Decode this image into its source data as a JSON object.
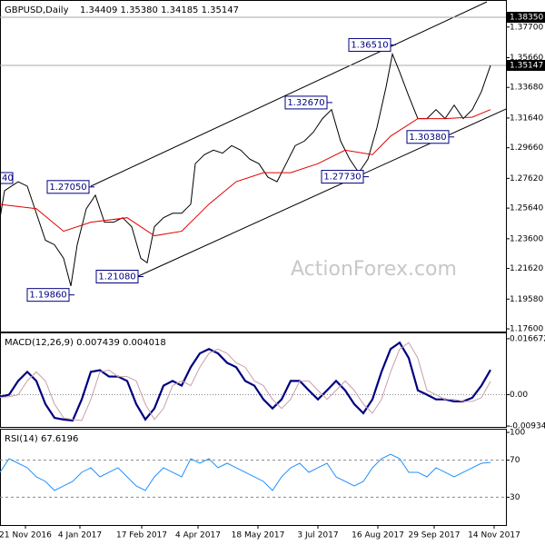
{
  "chart_data": [
    {
      "type": "line",
      "title": "GBPUSD,Daily",
      "subtitle": "1.34409 1.35380 1.34185 1.35147",
      "watermark": "ActionForex.com",
      "cut_label": "40",
      "xlim": [
        0,
        278.5
      ],
      "ylim": [
        1.1742,
        1.3938
      ],
      "yticks": [
        {
          "value": 1.176,
          "label": "1.17600"
        },
        {
          "value": 1.1958,
          "label": "1.19580"
        },
        {
          "value": 1.2162,
          "label": "1.21620"
        },
        {
          "value": 1.236,
          "label": "1.23600"
        },
        {
          "value": 1.2564,
          "label": "1.25640"
        },
        {
          "value": 1.2762,
          "label": "1.27620"
        },
        {
          "value": 1.2966,
          "label": "1.29660"
        },
        {
          "value": 1.3164,
          "label": "1.31640"
        },
        {
          "value": 1.3368,
          "label": "1.33680"
        },
        {
          "value": 1.3566,
          "label": "1.35660"
        },
        {
          "value": 1.377,
          "label": "1.37700"
        }
      ],
      "levels": [
        {
          "value": 1.3835,
          "label": "1.38350"
        },
        {
          "value": 1.35147,
          "label": "1.35147"
        }
      ],
      "series": [
        {
          "color": "#000000",
          "x": [
            0,
            2.5,
            10,
            15,
            20,
            25,
            30,
            35,
            39,
            42.5,
            47.5,
            52.5,
            57.5,
            62.5,
            67.5,
            72.5,
            77.5,
            81,
            85,
            90,
            95,
            100,
            105,
            107.5,
            112.5,
            117.5,
            122.5,
            127.5,
            132.5,
            137.5,
            142.5,
            147.5,
            152.5,
            157.5,
            162.5,
            167.5,
            172.5,
            177.5,
            182.5,
            187.5,
            192.5,
            197.5,
            202.5,
            207.5,
            212.5,
            216,
            220,
            225,
            230,
            235,
            240,
            245,
            250,
            255,
            260,
            265,
            270
          ],
          "values": [
            1.2498,
            1.268,
            1.274,
            1.271,
            1.253,
            1.235,
            1.232,
            1.223,
            1.2045,
            1.232,
            1.256,
            1.265,
            1.247,
            1.247,
            1.25,
            1.244,
            1.223,
            1.22,
            1.244,
            1.25,
            1.253,
            1.253,
            1.259,
            1.286,
            1.292,
            1.295,
            1.293,
            1.298,
            1.295,
            1.289,
            1.286,
            1.277,
            1.274,
            1.286,
            1.298,
            1.301,
            1.307,
            1.316,
            1.322,
            1.301,
            1.289,
            1.28,
            1.289,
            1.31,
            1.337,
            1.359,
            1.347,
            1.331,
            1.316,
            1.316,
            1.322,
            1.316,
            1.325,
            1.316,
            1.322,
            1.334,
            1.3514
          ]
        },
        {
          "color": "#e00000",
          "x": [
            0,
            20,
            35,
            50,
            70,
            85,
            100,
            115,
            130,
            145,
            160,
            175,
            190,
            205,
            215,
            230,
            245,
            260,
            270
          ],
          "values": [
            1.2589,
            1.256,
            1.241,
            1.247,
            1.25,
            1.238,
            1.241,
            1.259,
            1.274,
            1.28,
            1.28,
            1.286,
            1.295,
            1.292,
            1.3043,
            1.316,
            1.316,
            1.317,
            1.322
          ]
        }
      ],
      "channels": [
        {
          "x": [
            50,
            268
          ],
          "values": [
            1.271,
            1.3938
          ]
        },
        {
          "x": [
            75,
            278.5
          ],
          "values": [
            1.2105,
            1.3224
          ]
        }
      ],
      "annotations": [
        {
          "x": 218,
          "value": 1.3651,
          "label": "1.36510"
        },
        {
          "x": 183,
          "value": 1.3267,
          "label": "1.32670"
        },
        {
          "x": 52,
          "value": 1.2705,
          "label": "1.27050"
        },
        {
          "x": 203,
          "value": 1.2773,
          "label": "1.27730"
        },
        {
          "x": 250,
          "value": 1.3038,
          "label": "1.30380"
        },
        {
          "x": 79,
          "value": 1.2108,
          "label": "1.21080"
        },
        {
          "x": 41,
          "value": 1.1986,
          "label": "1.19860"
        }
      ]
    },
    {
      "type": "line",
      "title": "MACD(12,26,9) 0.007439 0.004018",
      "xlim": [
        0,
        278.5
      ],
      "ylim": [
        -0.0096,
        0.018
      ],
      "yticks": [
        0.016672,
        {
          "value": 0,
          "label": "0.00"
        },
        -0.009345
      ],
      "reflines": [
        0
      ],
      "refstyle": "1,2",
      "series": [
        {
          "color": "#000080",
          "width": 2.2,
          "x": [
            0,
            5,
            10,
            15,
            20,
            25,
            30,
            35,
            40,
            45,
            50,
            55,
            60,
            65,
            70,
            75,
            80,
            85,
            90,
            95,
            100,
            105,
            110,
            115,
            120,
            125,
            130,
            135,
            140,
            145,
            150,
            155,
            160,
            165,
            170,
            175,
            180,
            185,
            190,
            195,
            200,
            205,
            210,
            215,
            220,
            225,
            230,
            235,
            240,
            245,
            250,
            255,
            260,
            265,
            270
          ],
          "values": [
            -0.0006,
            0,
            0.0041,
            0.0068,
            0.0041,
            -0.0028,
            -0.0069,
            -0.0074,
            -0.0077,
            -0.0014,
            0.0068,
            0.0073,
            0.0054,
            0.0054,
            0.0041,
            -0.0028,
            -0.0074,
            -0.0041,
            0.0027,
            0.0041,
            0.0027,
            0.0082,
            0.0123,
            0.0136,
            0.0123,
            0.0095,
            0.0082,
            0.0041,
            0.0027,
            -0.0014,
            -0.0041,
            -0.0014,
            0.0041,
            0.0041,
            0.0013,
            -0.0014,
            0.0013,
            0.0041,
            0.0013,
            -0.0028,
            -0.0055,
            -0.0014,
            0.0068,
            0.0136,
            0.0155,
            0.0109,
            0.0013,
            0,
            -0.0014,
            -0.0014,
            -0.002,
            -0.002,
            -0.0009,
            0.0027,
            0.0074
          ]
        },
        {
          "color": "#c8a0a8",
          "width": 1,
          "x": [
            0,
            5,
            10,
            15,
            20,
            25,
            30,
            35,
            40,
            45,
            50,
            55,
            60,
            65,
            70,
            75,
            80,
            85,
            90,
            95,
            100,
            105,
            110,
            115,
            120,
            125,
            130,
            135,
            140,
            145,
            150,
            155,
            160,
            165,
            170,
            175,
            180,
            185,
            190,
            195,
            200,
            205,
            210,
            215,
            220,
            225,
            230,
            235,
            240,
            245,
            250,
            255,
            260,
            265,
            270
          ],
          "values": [
            -0.0008,
            -0.0006,
            0,
            0.0041,
            0.0068,
            0.0041,
            -0.0028,
            -0.0069,
            -0.0074,
            -0.0077,
            -0.0014,
            0.0068,
            0.0073,
            0.0054,
            0.0054,
            0.0041,
            -0.0028,
            -0.0074,
            -0.0041,
            0.0027,
            0.0041,
            0.0027,
            0.0082,
            0.0123,
            0.0136,
            0.0123,
            0.0095,
            0.0082,
            0.0041,
            0.0027,
            -0.0014,
            -0.0041,
            -0.0014,
            0.0041,
            0.0041,
            0.0013,
            -0.0014,
            0.0013,
            0.0041,
            0.0013,
            -0.0028,
            -0.0055,
            -0.0014,
            0.0068,
            0.0136,
            0.0155,
            0.0109,
            0.0013,
            0,
            -0.0014,
            -0.0014,
            -0.002,
            -0.002,
            -0.0009,
            0.004
          ]
        }
      ]
    },
    {
      "type": "line",
      "title": "RSI(14) 67.6196",
      "xlim": [
        0,
        278.5
      ],
      "ylim": [
        0,
        102
      ],
      "yticks": [
        100,
        70,
        30
      ],
      "reflines": [
        70,
        30
      ],
      "refstyle": "3,3",
      "xticks": [
        {
          "value": 14,
          "label": "21 Nov 2016"
        },
        {
          "value": 44,
          "label": "4 Jan 2017"
        },
        {
          "value": 78,
          "label": "17 Feb 2017"
        },
        {
          "value": 109,
          "label": "4 Apr 2017"
        },
        {
          "value": 142,
          "label": "18 May 2017"
        },
        {
          "value": 175,
          "label": "3 Jul 2017"
        },
        {
          "value": 208,
          "label": "16 Aug 2017"
        },
        {
          "value": 239,
          "label": "29 Sep 2017"
        },
        {
          "value": 272,
          "label": "14 Nov 2017"
        }
      ],
      "series": [
        {
          "color": "#1e90ff",
          "width": 1,
          "x": [
            0,
            5,
            10,
            15,
            20,
            25,
            30,
            35,
            40,
            45,
            50,
            55,
            60,
            65,
            70,
            75,
            80,
            85,
            90,
            95,
            100,
            105,
            110,
            115,
            120,
            125,
            130,
            135,
            140,
            145,
            150,
            155,
            160,
            165,
            170,
            175,
            180,
            185,
            190,
            195,
            200,
            205,
            210,
            215,
            220,
            225,
            230,
            235,
            240,
            245,
            250,
            255,
            260,
            265,
            270
          ],
          "values": [
            56.9,
            71.6,
            66.7,
            61.8,
            52,
            47.1,
            37.3,
            42.2,
            47.1,
            56.9,
            61.8,
            52,
            56.9,
            61.8,
            52,
            42.2,
            37.3,
            52,
            61.8,
            56.9,
            52,
            71.6,
            66.7,
            71.6,
            61.8,
            66.7,
            61.8,
            56.9,
            52,
            47.1,
            37.3,
            52,
            61.8,
            66.7,
            56.9,
            61.8,
            66.7,
            52,
            47.1,
            42.2,
            47.1,
            61.8,
            71.6,
            76.5,
            71.6,
            56.9,
            56.9,
            52,
            61.8,
            56.9,
            52,
            56.9,
            61.8,
            66.7,
            67.6
          ]
        }
      ]
    }
  ]
}
